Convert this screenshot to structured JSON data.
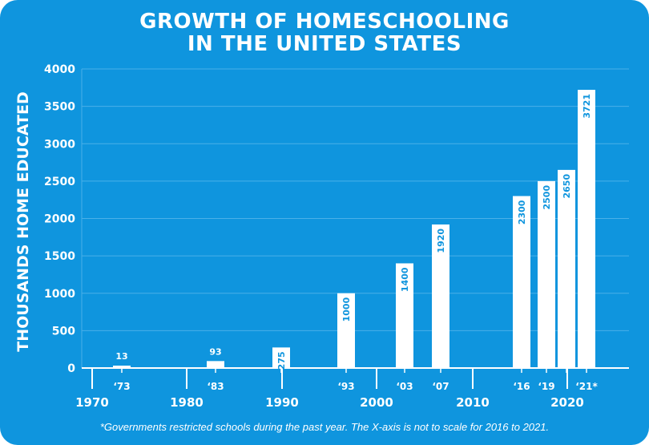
{
  "chart_data": {
    "type": "bar",
    "title_line1": "GROWTH OF HOMESCHOOLING",
    "title_line2": "IN THE UNITED STATES",
    "ylabel": "THOUSANDS HOME EDUCATED",
    "xlabel": "",
    "ylim": [
      0,
      4000
    ],
    "yticks": [
      0,
      500,
      1000,
      1500,
      2000,
      2500,
      3000,
      3500,
      4000
    ],
    "decades": [
      "1970",
      "1980",
      "1990",
      "2000",
      "2010",
      "2020"
    ],
    "grid": true,
    "footnote": "*Governments restricted schools during the past year. The X-axis is not to scale for 2016 to 2021.",
    "bars": [
      {
        "year": 1973,
        "tick_label": "‘73",
        "value": 13,
        "label": "13"
      },
      {
        "year": 1983,
        "tick_label": "‘83",
        "value": 93,
        "label": "93"
      },
      {
        "year": 1989,
        "tick_label": "",
        "value": 275,
        "label": "275"
      },
      {
        "year": 1993,
        "tick_label": "‘93",
        "value": 1000,
        "label": "1000"
      },
      {
        "year": 2003,
        "tick_label": "‘03",
        "value": 1400,
        "label": "1400"
      },
      {
        "year": 2007,
        "tick_label": "‘07",
        "value": 1920,
        "label": "1920"
      },
      {
        "year": 2016,
        "tick_label": "‘16",
        "value": 2300,
        "label": "2300"
      },
      {
        "year": 2019,
        "tick_label": "‘19",
        "value": 2500,
        "label": "2500"
      },
      {
        "year": 2020,
        "tick_label": "",
        "value": 2650,
        "label": "2650"
      },
      {
        "year": 2021,
        "tick_label": "‘21*",
        "value": 3721,
        "label": "3721"
      }
    ],
    "colors": {
      "background": "#0f95de",
      "bar": "#ffffff",
      "label_in_bar": "#0f95de",
      "grid": "#4ab0e8"
    }
  }
}
